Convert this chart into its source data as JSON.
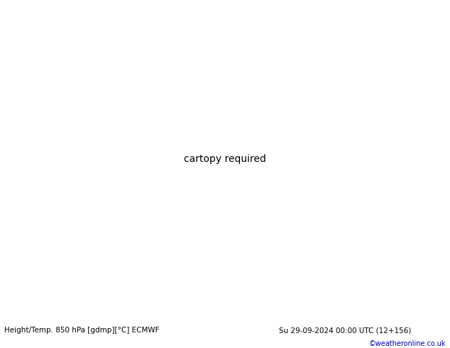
{
  "title_left": "Height/Temp. 850 hPa [gdmp][°C] ECMWF",
  "title_right": "Su 29-09-2024 00:00 UTC (12+156)",
  "credit": "©weatheronline.co.uk",
  "credit_color": "#0000cc",
  "fig_width": 6.34,
  "fig_height": 4.9,
  "dpi": 100,
  "extent": [
    90,
    200,
    -65,
    10
  ],
  "ocean_color": "#d8d8d8",
  "land_color": "#c8c8c8",
  "australia_green": "#b8f090",
  "contour_lw_black": 1.8,
  "contour_lw_color": 1.3,
  "orange": "#ff8c00",
  "green": "#80cc00",
  "cyan": "#00bbbb",
  "red": "#dd0000",
  "black": "#000000"
}
